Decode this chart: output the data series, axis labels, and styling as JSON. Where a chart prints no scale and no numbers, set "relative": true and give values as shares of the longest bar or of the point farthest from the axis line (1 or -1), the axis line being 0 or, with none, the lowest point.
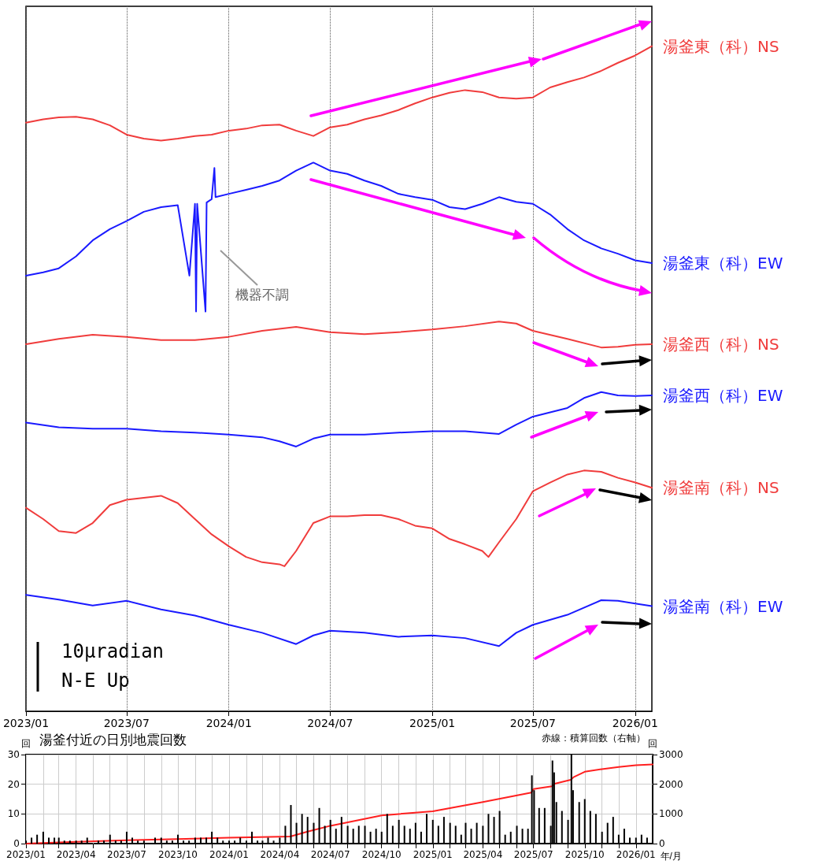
{
  "chart_data": [
    {
      "type": "line",
      "relative": true,
      "grid": "x",
      "marker": "none",
      "line_style": "solid",
      "xlim": [
        "2023-01-01",
        "2026-01-31"
      ],
      "xticks": [
        {
          "value": "2023-01-01",
          "label": "2023/01"
        },
        {
          "value": "2023-07-01",
          "label": "2023/07"
        },
        {
          "value": "2024-01-01",
          "label": "2024/01"
        },
        {
          "value": "2024-07-01",
          "label": "2024/07"
        },
        {
          "value": "2025-01-01",
          "label": "2025/01"
        },
        {
          "value": "2025-07-01",
          "label": "2025/07"
        },
        {
          "value": "2026-01-01",
          "label": "2026/01"
        }
      ],
      "annotations": [
        {
          "text": "機器不調",
          "x": "2023-11-20",
          "y": 0.601
        },
        "10μradian",
        "N-E Up"
      ],
      "series": [
        {
          "name": "湯釜東（科）NS",
          "color": "#f03c3c",
          "x": [
            "2023-01-01",
            "2023-02-01",
            "2023-03-01",
            "2023-04-01",
            "2023-05-01",
            "2023-06-01",
            "2023-07-01",
            "2023-08-01",
            "2023-09-01",
            "2023-10-01",
            "2023-11-01",
            "2023-12-01",
            "2024-01-01",
            "2024-02-01",
            "2024-03-01",
            "2024-04-01",
            "2024-05-01",
            "2024-06-01",
            "2024-07-01",
            "2024-08-01",
            "2024-09-01",
            "2024-10-01",
            "2024-11-01",
            "2024-12-01",
            "2025-01-01",
            "2025-02-01",
            "2025-03-01",
            "2025-04-01",
            "2025-05-01",
            "2025-06-01",
            "2025-07-01",
            "2025-08-01",
            "2025-09-01",
            "2025-10-01",
            "2025-11-01",
            "2025-12-01",
            "2026-01-01",
            "2026-01-31"
          ],
          "values": [
            0.885,
            0.89,
            0.893,
            0.894,
            0.89,
            0.881,
            0.867,
            0.861,
            0.858,
            0.861,
            0.865,
            0.867,
            0.873,
            0.876,
            0.881,
            0.882,
            0.873,
            0.865,
            0.878,
            0.882,
            0.89,
            0.896,
            0.904,
            0.914,
            0.923,
            0.93,
            0.934,
            0.931,
            0.923,
            0.921,
            0.923,
            0.938,
            0.946,
            0.953,
            0.963,
            0.975,
            0.986,
            1.0
          ]
        },
        {
          "name": "湯釜東（科）EW",
          "color": "#1a1aff",
          "x": [
            "2023-01-01",
            "2023-02-01",
            "2023-03-01",
            "2023-04-01",
            "2023-05-01",
            "2023-06-01",
            "2023-07-01",
            "2023-08-01",
            "2023-09-01",
            "2023-10-01",
            "2023-10-22",
            "2023-11-01",
            "2023-11-03",
            "2023-11-05",
            "2023-11-20",
            "2023-11-22",
            "2023-12-01",
            "2023-12-06",
            "2023-12-08",
            "2024-01-01",
            "2024-02-01",
            "2024-03-01",
            "2024-04-01",
            "2024-05-01",
            "2024-06-01",
            "2024-07-01",
            "2024-08-01",
            "2024-09-01",
            "2024-10-01",
            "2024-11-01",
            "2024-12-01",
            "2025-01-01",
            "2025-02-01",
            "2025-03-01",
            "2025-04-01",
            "2025-05-01",
            "2025-06-01",
            "2025-07-01",
            "2025-08-01",
            "2025-09-01",
            "2025-10-01",
            "2025-11-01",
            "2025-12-01",
            "2026-01-01",
            "2026-01-31"
          ],
          "values": [
            0.655,
            0.66,
            0.666,
            0.684,
            0.708,
            0.725,
            0.737,
            0.751,
            0.758,
            0.761,
            0.655,
            0.763,
            0.601,
            0.763,
            0.601,
            0.765,
            0.77,
            0.817,
            0.773,
            0.778,
            0.784,
            0.79,
            0.798,
            0.813,
            0.825,
            0.813,
            0.808,
            0.798,
            0.79,
            0.778,
            0.773,
            0.769,
            0.758,
            0.755,
            0.763,
            0.773,
            0.766,
            0.763,
            0.747,
            0.725,
            0.708,
            0.696,
            0.688,
            0.678,
            0.674
          ]
        },
        {
          "name": "湯釜西（科）NS",
          "color": "#f03c3c",
          "x": [
            "2023-01-01",
            "2023-03-01",
            "2023-05-01",
            "2023-07-01",
            "2023-09-01",
            "2023-11-01",
            "2024-01-01",
            "2024-03-01",
            "2024-05-01",
            "2024-07-01",
            "2024-09-01",
            "2024-11-01",
            "2025-01-01",
            "2025-03-01",
            "2025-05-01",
            "2025-06-01",
            "2025-07-01",
            "2025-09-01",
            "2025-11-01",
            "2025-12-01",
            "2026-01-01",
            "2026-01-31"
          ],
          "values": [
            0.552,
            0.56,
            0.566,
            0.563,
            0.558,
            0.558,
            0.563,
            0.572,
            0.578,
            0.57,
            0.567,
            0.57,
            0.574,
            0.579,
            0.586,
            0.583,
            0.572,
            0.56,
            0.547,
            0.548,
            0.551,
            0.552
          ]
        },
        {
          "name": "湯釜西（科）EW",
          "color": "#1a1aff",
          "x": [
            "2023-01-01",
            "2023-03-01",
            "2023-05-01",
            "2023-07-01",
            "2023-09-01",
            "2023-11-01",
            "2024-01-01",
            "2024-03-01",
            "2024-04-01",
            "2024-05-01",
            "2024-06-01",
            "2024-07-01",
            "2024-09-01",
            "2024-11-01",
            "2025-01-01",
            "2025-03-01",
            "2025-04-01",
            "2025-05-01",
            "2025-06-01",
            "2025-07-01",
            "2025-09-01",
            "2025-10-01",
            "2025-11-01",
            "2025-12-01",
            "2026-01-01",
            "2026-01-31"
          ],
          "values": [
            0.434,
            0.427,
            0.425,
            0.425,
            0.421,
            0.419,
            0.416,
            0.412,
            0.406,
            0.398,
            0.41,
            0.416,
            0.416,
            0.419,
            0.421,
            0.421,
            0.419,
            0.417,
            0.431,
            0.443,
            0.456,
            0.471,
            0.48,
            0.475,
            0.474,
            0.475
          ]
        },
        {
          "name": "湯釜南（科）NS",
          "color": "#f03c3c",
          "x": [
            "2023-01-01",
            "2023-02-01",
            "2023-03-01",
            "2023-04-01",
            "2023-05-01",
            "2023-06-01",
            "2023-07-01",
            "2023-09-01",
            "2023-10-01",
            "2023-11-01",
            "2023-12-01",
            "2024-01-01",
            "2024-02-01",
            "2024-03-01",
            "2024-04-01",
            "2024-04-10",
            "2024-05-01",
            "2024-06-01",
            "2024-07-01",
            "2024-08-01",
            "2024-09-01",
            "2024-10-01",
            "2024-11-01",
            "2024-12-01",
            "2025-01-01",
            "2025-02-01",
            "2025-03-01",
            "2025-04-01",
            "2025-04-12",
            "2025-05-01",
            "2025-06-01",
            "2025-07-01",
            "2025-08-01",
            "2025-09-01",
            "2025-10-01",
            "2025-11-01",
            "2025-12-01",
            "2026-01-01",
            "2026-01-31"
          ],
          "values": [
            0.306,
            0.289,
            0.271,
            0.268,
            0.283,
            0.31,
            0.318,
            0.324,
            0.313,
            0.289,
            0.266,
            0.248,
            0.232,
            0.224,
            0.221,
            0.218,
            0.241,
            0.283,
            0.293,
            0.293,
            0.295,
            0.295,
            0.289,
            0.279,
            0.275,
            0.259,
            0.251,
            0.241,
            0.232,
            0.254,
            0.289,
            0.331,
            0.344,
            0.356,
            0.362,
            0.36,
            0.351,
            0.344,
            0.336
          ]
        },
        {
          "name": "湯釜南（科）EW",
          "color": "#1a1aff",
          "x": [
            "2023-01-01",
            "2023-03-01",
            "2023-05-01",
            "2023-07-01",
            "2023-09-01",
            "2023-11-01",
            "2024-01-01",
            "2024-03-01",
            "2024-05-01",
            "2024-06-01",
            "2024-07-01",
            "2024-09-01",
            "2024-11-01",
            "2025-01-01",
            "2025-03-01",
            "2025-05-01",
            "2025-06-01",
            "2025-07-01",
            "2025-09-01",
            "2025-11-01",
            "2025-12-01",
            "2026-01-01",
            "2026-01-31"
          ],
          "values": [
            0.175,
            0.168,
            0.159,
            0.166,
            0.153,
            0.144,
            0.13,
            0.118,
            0.101,
            0.114,
            0.121,
            0.118,
            0.112,
            0.114,
            0.11,
            0.098,
            0.118,
            0.13,
            0.145,
            0.167,
            0.166,
            0.162,
            0.158
          ]
        }
      ]
    },
    {
      "type": "bar",
      "title": "湯釜付近の日別地震回数",
      "xlabel": "年/月",
      "ylabel": "回",
      "y2label": "回",
      "grid": true,
      "marker": "none",
      "xlim": [
        "2023-01-01",
        "2026-01-31"
      ],
      "xticks": [
        {
          "value": "2023-01-01",
          "label": "2023/01"
        },
        {
          "value": "2023-02-01",
          "label": null
        },
        {
          "value": "2023-03-01",
          "label": null
        },
        {
          "value": "2023-04-01",
          "label": "2023/04"
        },
        {
          "value": "2023-05-01",
          "label": null
        },
        {
          "value": "2023-06-01",
          "label": null
        },
        {
          "value": "2023-07-01",
          "label": "2023/07"
        },
        {
          "value": "2023-08-01",
          "label": null
        },
        {
          "value": "2023-09-01",
          "label": null
        },
        {
          "value": "2023-10-01",
          "label": "2023/10"
        },
        {
          "value": "2023-11-01",
          "label": null
        },
        {
          "value": "2023-12-01",
          "label": null
        },
        {
          "value": "2024-01-01",
          "label": "2024/01"
        },
        {
          "value": "2024-02-01",
          "label": null
        },
        {
          "value": "2024-03-01",
          "label": null
        },
        {
          "value": "2024-04-01",
          "label": "2024/04"
        },
        {
          "value": "2024-05-01",
          "label": null
        },
        {
          "value": "2024-06-01",
          "label": null
        },
        {
          "value": "2024-07-01",
          "label": "2024/07"
        },
        {
          "value": "2024-08-01",
          "label": null
        },
        {
          "value": "2024-09-01",
          "label": null
        },
        {
          "value": "2024-10-01",
          "label": "2024/10"
        },
        {
          "value": "2024-11-01",
          "label": null
        },
        {
          "value": "2024-12-01",
          "label": null
        },
        {
          "value": "2025-01-01",
          "label": "2025/01"
        },
        {
          "value": "2025-02-01",
          "label": null
        },
        {
          "value": "2025-03-01",
          "label": null
        },
        {
          "value": "2025-04-01",
          "label": "2025/04"
        },
        {
          "value": "2025-05-01",
          "label": null
        },
        {
          "value": "2025-06-01",
          "label": null
        },
        {
          "value": "2025-07-01",
          "label": "2025/07"
        },
        {
          "value": "2025-08-01",
          "label": null
        },
        {
          "value": "2025-09-01",
          "label": null
        },
        {
          "value": "2025-10-01",
          "label": "2025/10"
        },
        {
          "value": "2025-11-01",
          "label": null
        },
        {
          "value": "2025-12-01",
          "label": null
        },
        {
          "value": "2026-01-01",
          "label": "2026/01"
        }
      ],
      "ylim": [
        0,
        30
      ],
      "yticks": [
        0,
        10,
        20,
        30
      ],
      "y2lim": [
        0,
        3000
      ],
      "y2ticks": [
        0,
        1000,
        2000,
        3000
      ],
      "annotations": [
        "赤線：積算回数（右軸）"
      ],
      "series": [
        {
          "color": "#000000",
          "x": [
            "2023-01-01",
            "2023-01-11",
            "2023-01-21",
            "2023-02-01",
            "2023-02-11",
            "2023-02-21",
            "2023-03-01",
            "2023-03-11",
            "2023-03-21",
            "2023-04-01",
            "2023-04-11",
            "2023-04-21",
            "2023-05-01",
            "2023-05-11",
            "2023-05-21",
            "2023-06-01",
            "2023-06-11",
            "2023-06-21",
            "2023-07-01",
            "2023-07-11",
            "2023-07-21",
            "2023-08-01",
            "2023-08-11",
            "2023-08-21",
            "2023-09-01",
            "2023-09-11",
            "2023-09-21",
            "2023-10-01",
            "2023-10-11",
            "2023-10-21",
            "2023-11-01",
            "2023-11-11",
            "2023-11-21",
            "2023-12-01",
            "2023-12-11",
            "2023-12-21",
            "2024-01-01",
            "2024-01-11",
            "2024-01-21",
            "2024-02-01",
            "2024-02-11",
            "2024-02-21",
            "2024-03-01",
            "2024-03-11",
            "2024-03-21",
            "2024-04-01",
            "2024-04-11",
            "2024-04-21",
            "2024-05-01",
            "2024-05-11",
            "2024-05-21",
            "2024-06-01",
            "2024-06-11",
            "2024-06-21",
            "2024-07-01",
            "2024-07-11",
            "2024-07-21",
            "2024-08-01",
            "2024-08-11",
            "2024-08-21",
            "2024-09-01",
            "2024-09-11",
            "2024-09-21",
            "2024-10-01",
            "2024-10-11",
            "2024-10-21",
            "2024-11-01",
            "2024-11-11",
            "2024-11-21",
            "2024-12-01",
            "2024-12-11",
            "2024-12-21",
            "2025-01-01",
            "2025-01-11",
            "2025-01-21",
            "2025-02-01",
            "2025-02-11",
            "2025-02-21",
            "2025-03-01",
            "2025-03-11",
            "2025-03-21",
            "2025-04-01",
            "2025-04-11",
            "2025-04-21",
            "2025-05-01",
            "2025-05-11",
            "2025-05-21",
            "2025-06-01",
            "2025-06-11",
            "2025-06-21",
            "2025-06-28",
            "2025-07-02",
            "2025-07-11",
            "2025-07-21",
            "2025-08-01",
            "2025-08-04",
            "2025-08-07",
            "2025-08-11",
            "2025-08-21",
            "2025-09-01",
            "2025-09-07",
            "2025-09-10",
            "2025-09-21",
            "2025-10-01",
            "2025-10-11",
            "2025-10-21",
            "2025-11-01",
            "2025-11-11",
            "2025-11-21",
            "2025-12-01",
            "2025-12-11",
            "2025-12-21",
            "2026-01-01",
            "2026-01-11",
            "2026-01-21"
          ],
          "values": [
            1,
            2,
            3,
            4,
            2,
            2,
            2,
            1,
            1,
            1,
            1,
            2,
            0,
            1,
            1,
            3,
            1,
            1,
            4,
            2,
            1,
            1,
            0,
            2,
            2,
            1,
            1,
            3,
            1,
            1,
            2,
            2,
            2,
            4,
            2,
            1,
            1,
            1,
            2,
            1,
            4,
            1,
            1,
            2,
            1,
            2,
            6,
            13,
            7,
            10,
            9,
            7,
            12,
            6,
            8,
            5,
            9,
            6,
            5,
            6,
            6,
            4,
            5,
            4,
            10,
            6,
            8,
            6,
            5,
            7,
            4,
            10,
            8,
            6,
            9,
            7,
            6,
            3,
            7,
            5,
            7,
            6,
            10,
            9,
            11,
            3,
            4,
            6,
            5,
            5,
            23,
            18,
            12,
            12,
            6,
            28,
            24,
            14,
            11,
            8,
            30,
            18,
            14,
            15,
            11,
            10,
            4,
            7,
            9,
            3,
            5,
            2,
            2,
            3,
            2
          ]
        },
        {
          "type": "line",
          "axis": "y2",
          "color": "#ff2020",
          "x": [
            "2023-01-01",
            "2023-04-01",
            "2023-07-01",
            "2023-10-01",
            "2024-01-01",
            "2024-04-20",
            "2024-05-20",
            "2024-07-01",
            "2024-10-01",
            "2025-01-01",
            "2025-04-01",
            "2025-06-27",
            "2025-07-01",
            "2025-08-03",
            "2025-08-08",
            "2025-09-06",
            "2025-09-11",
            "2025-10-01",
            "2025-11-01",
            "2025-12-01",
            "2026-01-01",
            "2026-01-31"
          ],
          "values": [
            0,
            60,
            110,
            150,
            200,
            240,
            400,
            600,
            950,
            1090,
            1400,
            1720,
            1840,
            1930,
            2020,
            2150,
            2240,
            2420,
            2510,
            2580,
            2640,
            2670
          ]
        }
      ]
    }
  ]
}
